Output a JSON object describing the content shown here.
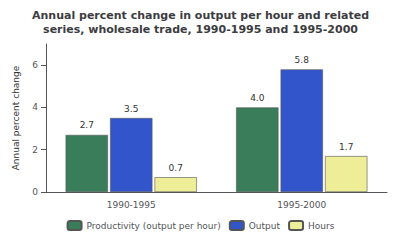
{
  "chart_data": {
    "type": "bar",
    "title": "Annual percent change in output per hour and related\nseries, wholesale trade, 1990-1995 and 1995-2000",
    "categories": [
      "1990-1995",
      "1995-2000"
    ],
    "series": [
      {
        "name": "Productivity (output per hour)",
        "color": "#3a7d5a",
        "values": [
          2.7,
          4.0
        ],
        "value_labels": [
          "2.7",
          "4.0"
        ]
      },
      {
        "name": "Output",
        "color": "#3355cc",
        "values": [
          3.5,
          5.8
        ],
        "value_labels": [
          "3.5",
          "5.8"
        ]
      },
      {
        "name": "Hours",
        "color": "#eeee99",
        "values": [
          0.7,
          1.7
        ],
        "value_labels": [
          "0.7",
          "1.7"
        ]
      }
    ],
    "ylabel": "Annual percent change",
    "ylim": [
      0,
      7
    ],
    "yticks": [
      0,
      2,
      4,
      6
    ],
    "grid": false,
    "legend": "bottom",
    "data_labels": true
  }
}
